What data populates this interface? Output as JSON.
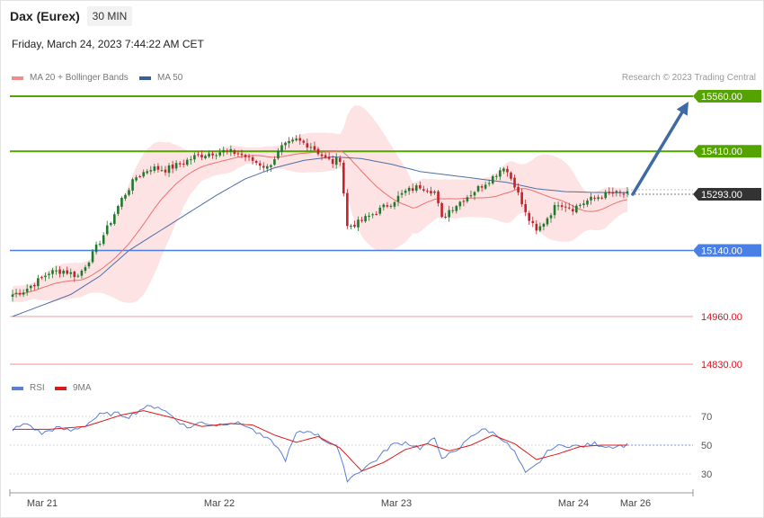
{
  "header": {
    "instrument": "Dax (Eurex)",
    "timeframe": "30 MIN",
    "timestamp": "Friday, March 24, 2023 7:44:22 AM CET"
  },
  "legend": {
    "ma20": "MA 20 + Bollinger Bands",
    "ma50": "MA 50",
    "credit": "Research © 2023 Trading Central",
    "rsi": "RSI",
    "rsi_ma": "9MA"
  },
  "colors": {
    "resistance": "#55a300",
    "support": "#4a7fe6",
    "target_line": "#f4a6a6",
    "target_text": "#e0101a",
    "current": "#333333",
    "up_candle": "#1f7a2e",
    "down_candle": "#c8202a",
    "ma20": "#ee7070",
    "ma50": "#4e6fa8",
    "band": "#fde3e3",
    "arrow": "#3e6aa6",
    "rsi": "#5b7fd6",
    "rsi_ma": "#e01818"
  },
  "chart_data": [
    {
      "type": "candlestick",
      "x_labels": [
        "Mar 21",
        "Mar 22",
        "Mar 23",
        "Mar 24",
        "Mar 26"
      ],
      "ylim": [
        14780,
        15600
      ],
      "levels": [
        {
          "value": 15560,
          "label": "15560.00",
          "kind": "resistance"
        },
        {
          "value": 15410,
          "label": "15410.00",
          "kind": "resistance"
        },
        {
          "value": 15293,
          "label": "15293.00",
          "kind": "current"
        },
        {
          "value": 15140,
          "label": "15140.00",
          "kind": "support"
        },
        {
          "value": 14960,
          "label": "14960.00",
          "kind": "target"
        },
        {
          "value": 14830,
          "label": "14830.00",
          "kind": "target"
        }
      ],
      "close_anchors": [
        [
          0,
          15020
        ],
        [
          3,
          15030
        ],
        [
          6,
          15050
        ],
        [
          10,
          15080
        ],
        [
          14,
          15085
        ],
        [
          18,
          15070
        ],
        [
          22,
          15130
        ],
        [
          26,
          15200
        ],
        [
          30,
          15280
        ],
        [
          34,
          15340
        ],
        [
          38,
          15365
        ],
        [
          42,
          15360
        ],
        [
          46,
          15375
        ],
        [
          50,
          15395
        ],
        [
          54,
          15405
        ],
        [
          58,
          15410
        ],
        [
          62,
          15405
        ],
        [
          66,
          15385
        ],
        [
          70,
          15365
        ],
        [
          74,
          15420
        ],
        [
          78,
          15440
        ],
        [
          82,
          15425
        ],
        [
          86,
          15390
        ],
        [
          88,
          15380
        ],
        [
          90,
          15390
        ],
        [
          92,
          15205
        ],
        [
          95,
          15215
        ],
        [
          100,
          15245
        ],
        [
          104,
          15270
        ],
        [
          108,
          15300
        ],
        [
          112,
          15315
        ],
        [
          116,
          15300
        ],
        [
          118,
          15225
        ],
        [
          120,
          15250
        ],
        [
          124,
          15280
        ],
        [
          128,
          15310
        ],
        [
          132,
          15340
        ],
        [
          135,
          15370
        ],
        [
          138,
          15320
        ],
        [
          141,
          15240
        ],
        [
          144,
          15190
        ],
        [
          147,
          15230
        ],
        [
          150,
          15270
        ],
        [
          154,
          15255
        ],
        [
          158,
          15275
        ],
        [
          162,
          15290
        ],
        [
          165,
          15295
        ],
        [
          169,
          15293
        ]
      ],
      "ma50_anchors": [
        [
          0,
          14960
        ],
        [
          8,
          14990
        ],
        [
          16,
          15020
        ],
        [
          24,
          15070
        ],
        [
          32,
          15140
        ],
        [
          40,
          15190
        ],
        [
          48,
          15240
        ],
        [
          56,
          15290
        ],
        [
          64,
          15335
        ],
        [
          72,
          15365
        ],
        [
          80,
          15385
        ],
        [
          88,
          15395
        ],
        [
          96,
          15390
        ],
        [
          104,
          15375
        ],
        [
          112,
          15355
        ],
        [
          120,
          15345
        ],
        [
          128,
          15335
        ],
        [
          136,
          15325
        ],
        [
          144,
          15308
        ],
        [
          152,
          15300
        ],
        [
          160,
          15298
        ],
        [
          169,
          15297
        ]
      ],
      "forecast_arrow": {
        "from": 15293,
        "to": 15545
      }
    },
    {
      "type": "line",
      "name": "RSI",
      "ylim": [
        20,
        85
      ],
      "ticks": [
        70,
        50,
        30
      ],
      "rsi_anchors": [
        [
          0,
          61
        ],
        [
          4,
          65
        ],
        [
          8,
          58
        ],
        [
          12,
          62
        ],
        [
          16,
          60
        ],
        [
          20,
          64
        ],
        [
          24,
          71
        ],
        [
          28,
          72
        ],
        [
          32,
          70
        ],
        [
          36,
          76
        ],
        [
          40,
          77
        ],
        [
          44,
          70
        ],
        [
          48,
          62
        ],
        [
          52,
          66
        ],
        [
          56,
          64
        ],
        [
          60,
          66
        ],
        [
          64,
          64
        ],
        [
          68,
          57
        ],
        [
          72,
          51
        ],
        [
          75,
          40
        ],
        [
          78,
          58
        ],
        [
          82,
          60
        ],
        [
          86,
          53
        ],
        [
          89,
          50
        ],
        [
          92,
          26
        ],
        [
          96,
          33
        ],
        [
          100,
          40
        ],
        [
          104,
          50
        ],
        [
          108,
          52
        ],
        [
          112,
          48
        ],
        [
          116,
          54
        ],
        [
          118,
          42
        ],
        [
          122,
          45
        ],
        [
          126,
          57
        ],
        [
          130,
          61
        ],
        [
          134,
          56
        ],
        [
          138,
          45
        ],
        [
          141,
          30
        ],
        [
          144,
          36
        ],
        [
          148,
          48
        ],
        [
          152,
          50
        ],
        [
          156,
          49
        ],
        [
          160,
          51
        ],
        [
          164,
          49
        ],
        [
          169,
          50
        ]
      ],
      "rsi_ma_anchors": [
        [
          0,
          61
        ],
        [
          10,
          61
        ],
        [
          20,
          63
        ],
        [
          30,
          71
        ],
        [
          36,
          74
        ],
        [
          44,
          69
        ],
        [
          52,
          63
        ],
        [
          60,
          65
        ],
        [
          66,
          64
        ],
        [
          72,
          57
        ],
        [
          78,
          52
        ],
        [
          84,
          56
        ],
        [
          90,
          48
        ],
        [
          96,
          32
        ],
        [
          102,
          38
        ],
        [
          108,
          47
        ],
        [
          114,
          51
        ],
        [
          120,
          46
        ],
        [
          126,
          50
        ],
        [
          132,
          57
        ],
        [
          138,
          51
        ],
        [
          144,
          40
        ],
        [
          150,
          44
        ],
        [
          156,
          49
        ],
        [
          162,
          50
        ],
        [
          169,
          50
        ]
      ]
    }
  ]
}
